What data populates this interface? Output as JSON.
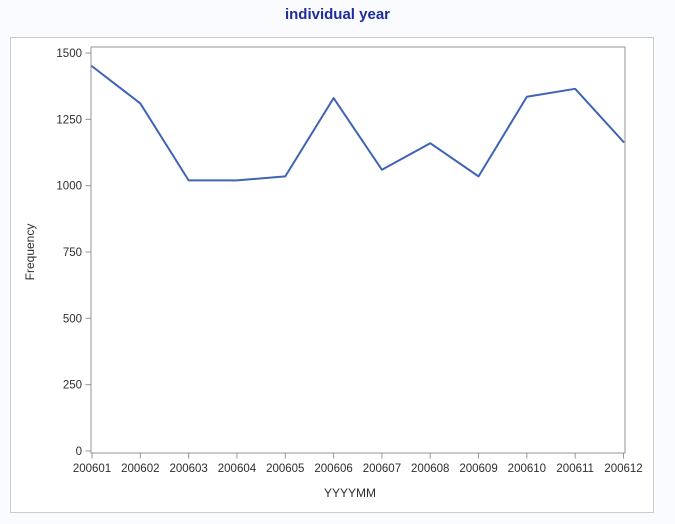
{
  "page": {
    "title": "individual year"
  },
  "chart_data": {
    "type": "line",
    "title": "individual year",
    "xlabel": "YYYYMM",
    "ylabel": "Frequency",
    "categories": [
      "200601",
      "200602",
      "200603",
      "200604",
      "200605",
      "200606",
      "200607",
      "200608",
      "200609",
      "200610",
      "200611",
      "200612"
    ],
    "values": [
      1450,
      1310,
      1020,
      1020,
      1035,
      1330,
      1060,
      1160,
      1035,
      1335,
      1365,
      1165
    ],
    "ylim": [
      0,
      1500
    ],
    "yticks": [
      0,
      250,
      500,
      750,
      1000,
      1250,
      1500
    ],
    "grid": false,
    "legend": "none"
  },
  "colors": {
    "title": "#1C2D9E",
    "line": "#3F63B5",
    "axis_frame": "#949699",
    "tick": "#949699",
    "tick_label": "#2E2E2E",
    "axis_title": "#2E2E2E",
    "panel_border": "#C9CBD1",
    "panel_bg": "#FFFFFF",
    "page_bg": "#FAFBFE"
  }
}
